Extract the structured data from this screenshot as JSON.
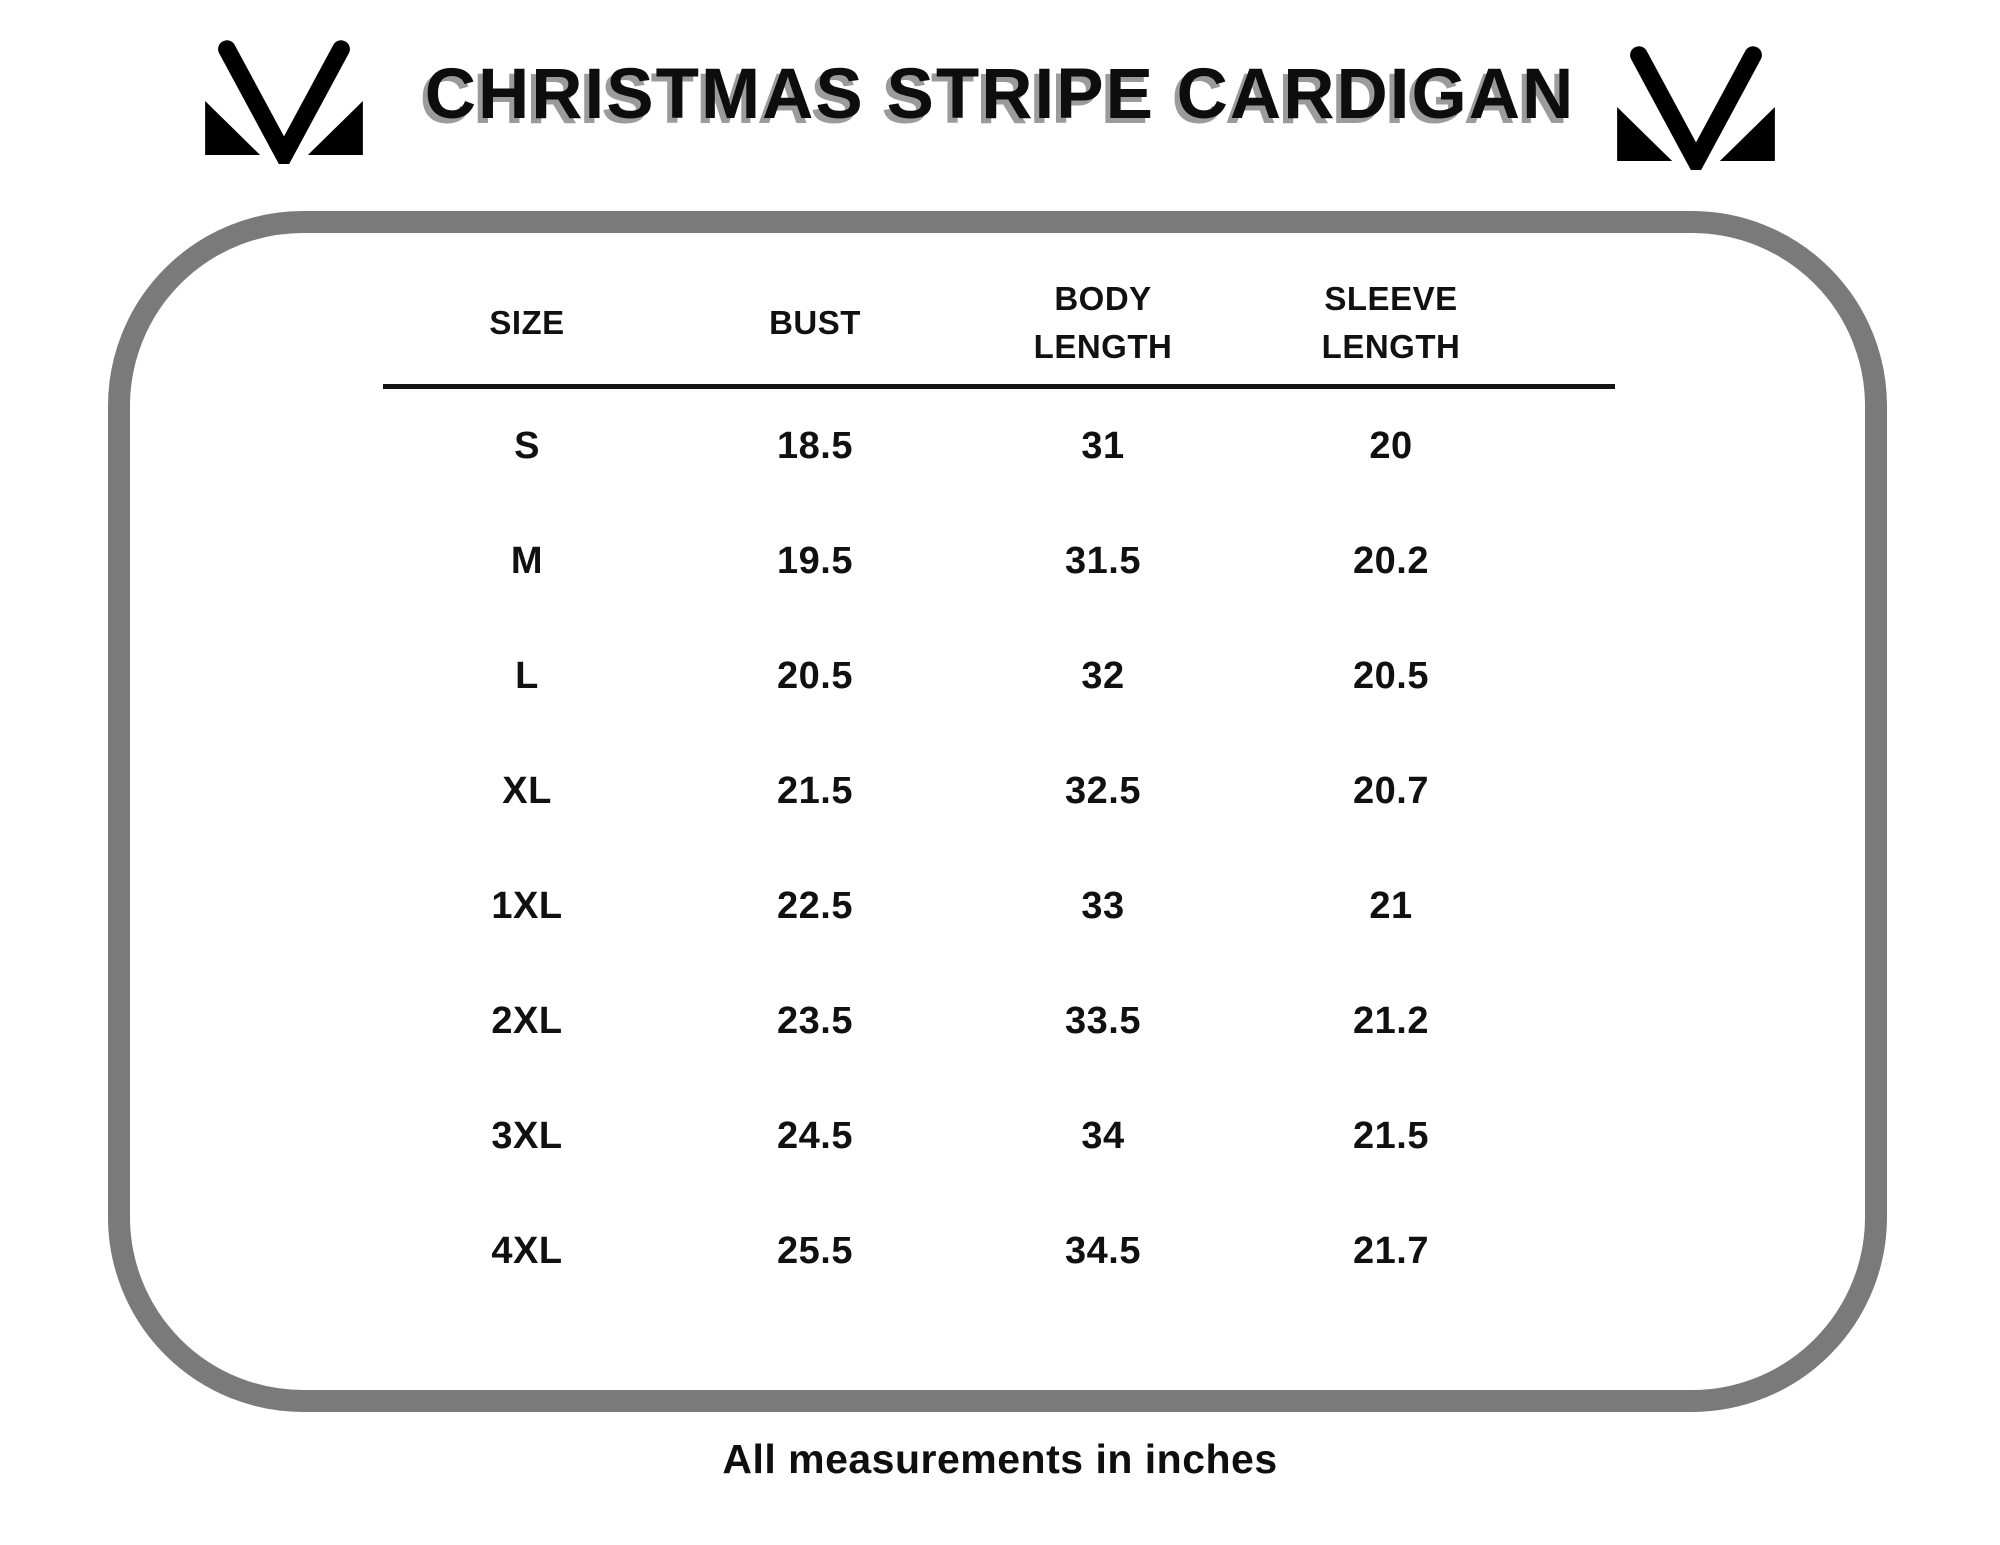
{
  "title": "CHRISTMAS STRIPE CARDIGAN",
  "logo": {
    "icon": "m-monogram-icon"
  },
  "table": {
    "headers": [
      "SIZE",
      "BUST",
      "BODY\nLENGTH",
      "SLEEVE\nLENGTH"
    ],
    "rows": [
      [
        "S",
        "18.5",
        "31",
        "20"
      ],
      [
        "M",
        "19.5",
        "31.5",
        "20.2"
      ],
      [
        "L",
        "20.5",
        "32",
        "20.5"
      ],
      [
        "XL",
        "21.5",
        "32.5",
        "20.7"
      ],
      [
        "1XL",
        "22.5",
        "33",
        "21"
      ],
      [
        "2XL",
        "23.5",
        "33.5",
        "21.2"
      ],
      [
        "3XL",
        "24.5",
        "34",
        "21.5"
      ],
      [
        "4XL",
        "25.5",
        "34.5",
        "21.7"
      ]
    ]
  },
  "footnote": "All measurements in inches",
  "colors": {
    "frame_border": "#7a7a7a",
    "title_shadow": "#9b9b9b",
    "text": "#111111",
    "background": "#ffffff",
    "divider": "#141414"
  }
}
